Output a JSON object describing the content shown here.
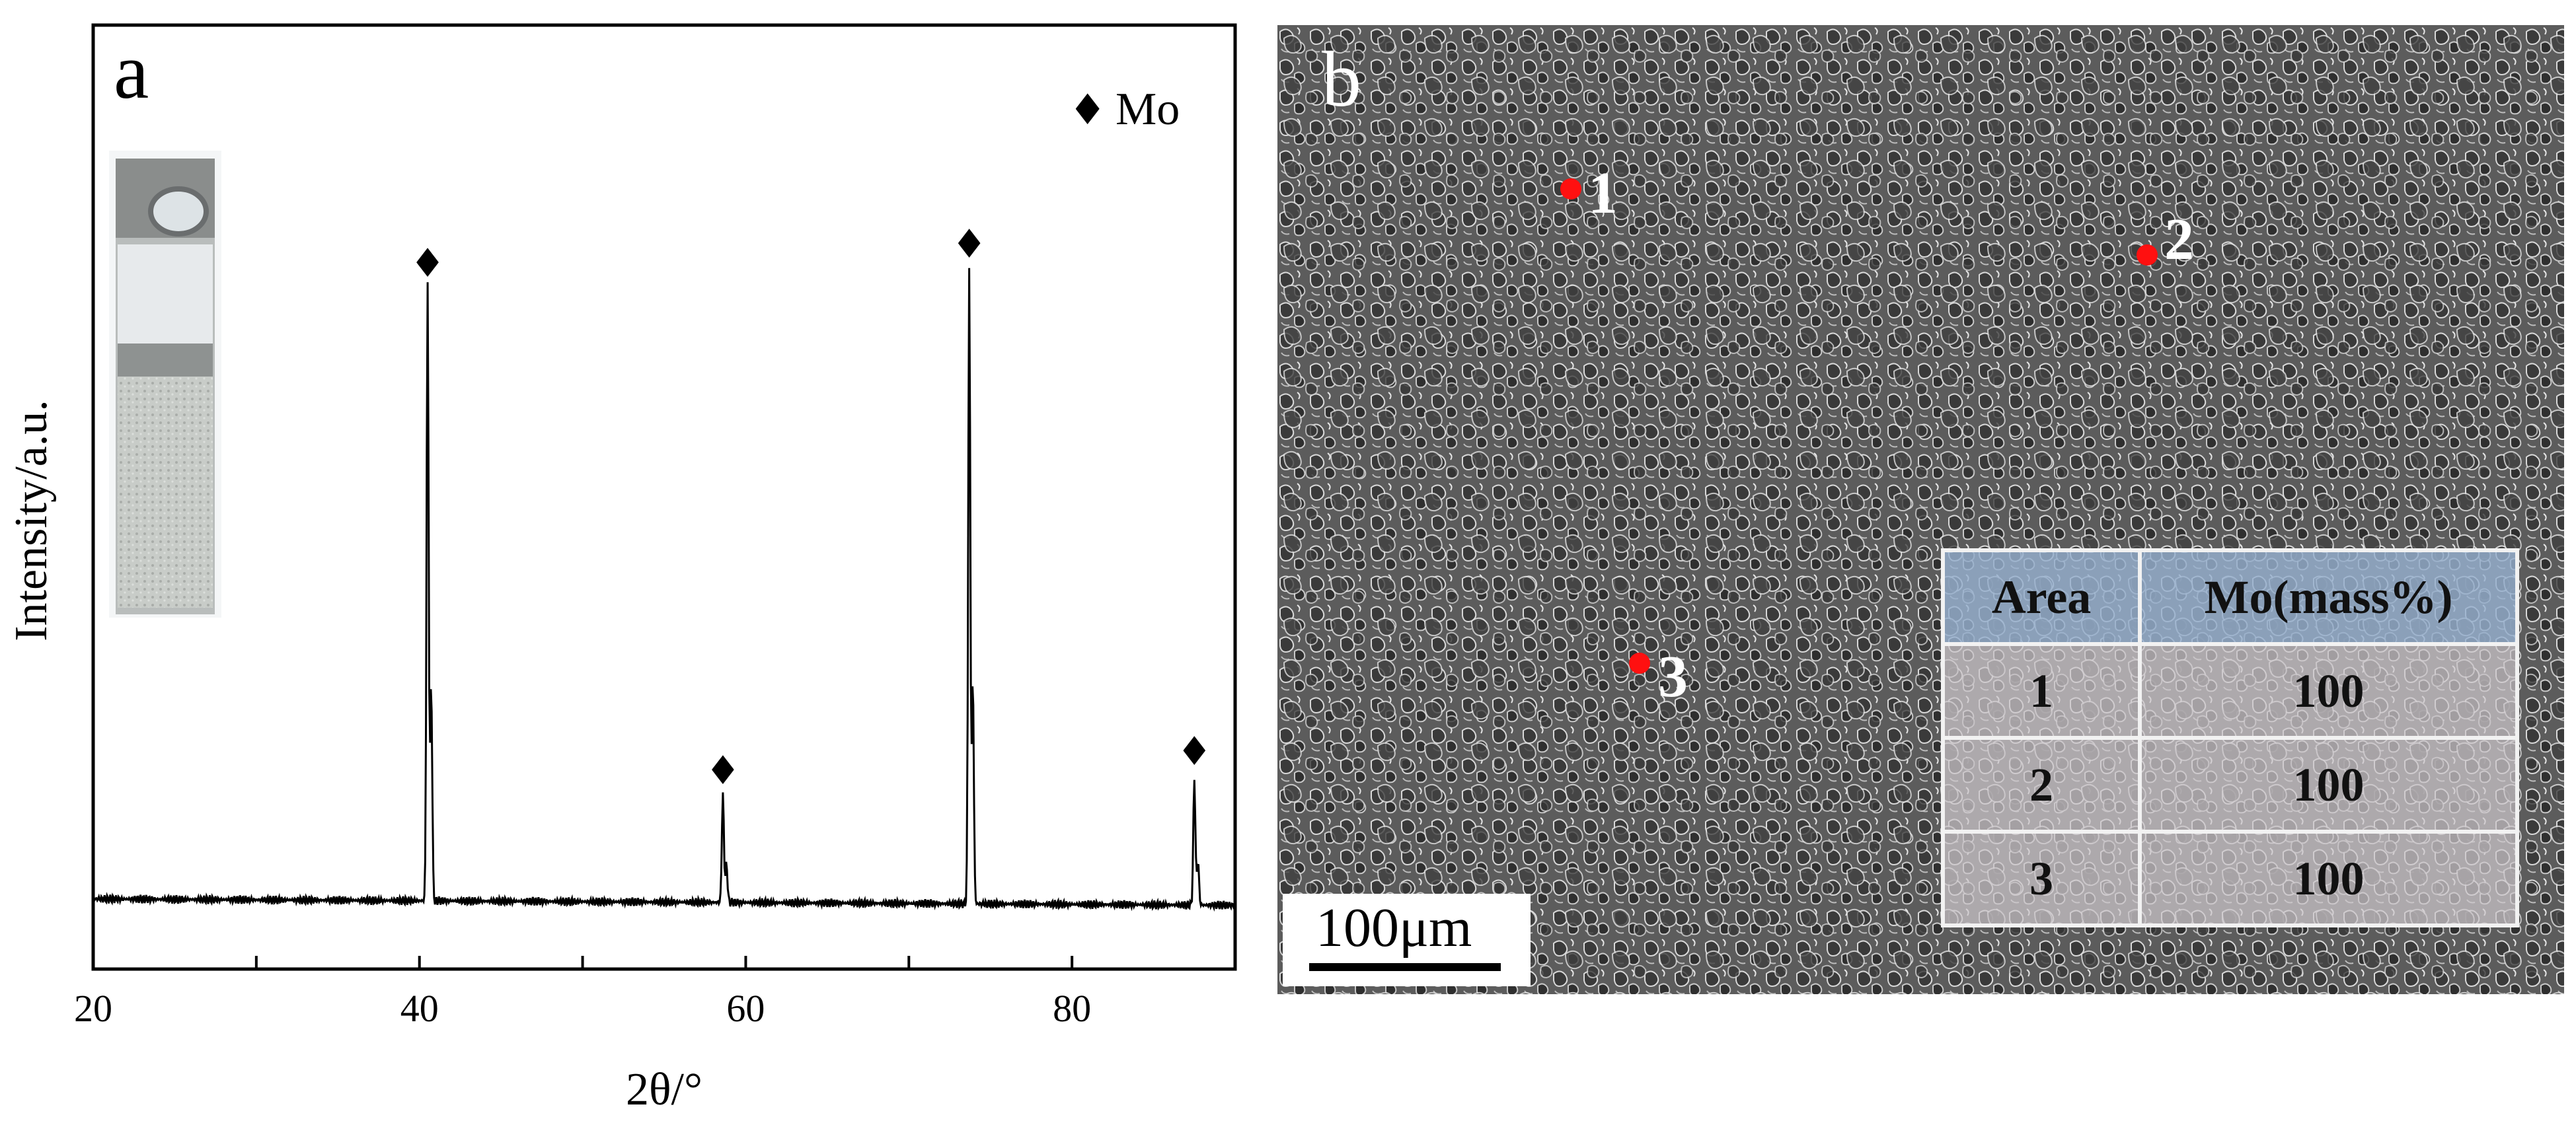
{
  "panel_a": {
    "letter": "a",
    "legend_marker": "♦",
    "legend_label": "Mo"
  },
  "chart_data": {
    "type": "line",
    "title": "",
    "xlabel": "2θ/°",
    "ylabel": "Intensity/a.u.",
    "xlim": [
      20,
      90
    ],
    "xticks": [
      20,
      40,
      60,
      80
    ],
    "xtick_labels": [
      "20",
      "40",
      "60",
      "80"
    ],
    "grid": false,
    "legend": "top-right",
    "baseline_intensity": 0.02,
    "peaks": [
      {
        "two_theta": 40.5,
        "intensity": 0.97,
        "marker": "♦"
      },
      {
        "two_theta": 58.6,
        "intensity": 0.17,
        "marker": "♦"
      },
      {
        "two_theta": 73.7,
        "intensity": 1.0,
        "marker": "♦"
      },
      {
        "two_theta": 87.5,
        "intensity": 0.2,
        "marker": "♦"
      }
    ],
    "series": [
      {
        "name": "Mo",
        "marker": "♦"
      }
    ]
  },
  "panel_b": {
    "letter": "b",
    "spots": [
      "1",
      "2",
      "3"
    ],
    "scale_bar": "100μm",
    "table": {
      "headers": [
        "Area",
        "Mo(mass%)"
      ],
      "rows": [
        [
          "1",
          "100"
        ],
        [
          "2",
          "100"
        ],
        [
          "3",
          "100"
        ]
      ]
    }
  },
  "colors": {
    "spot": "#ff1010",
    "table_header": "#96b0ce",
    "table_cell": "#cdc8cc"
  }
}
